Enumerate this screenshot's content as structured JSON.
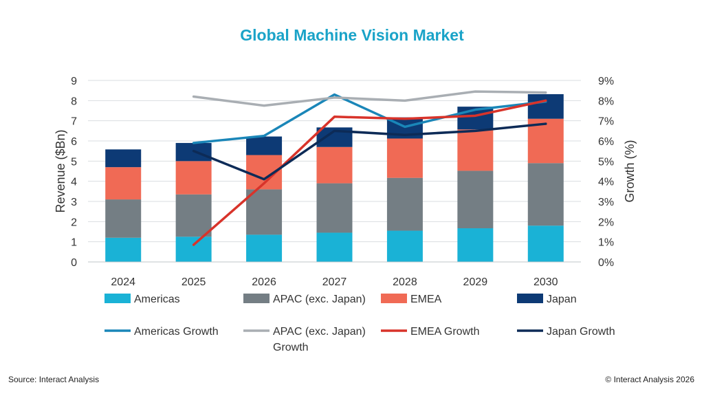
{
  "chart_data": {
    "type": "bar",
    "title": "Global Machine Vision Market",
    "categories": [
      "2024",
      "2025",
      "2026",
      "2027",
      "2028",
      "2029",
      "2030"
    ],
    "ylabel": "Revenue ($Bn)",
    "ylim": [
      0,
      9
    ],
    "y_ticks": [
      "0",
      "1",
      "2",
      "3",
      "4",
      "5",
      "6",
      "7",
      "8",
      "9"
    ],
    "y2label": "Growth (%)",
    "y2lim": [
      0,
      9
    ],
    "y2_ticks": [
      "0%",
      "1%",
      "2%",
      "3%",
      "4%",
      "5%",
      "6%",
      "7%",
      "8%",
      "9%"
    ],
    "stacked": true,
    "grid": true,
    "legend_position": "bottom",
    "series": [
      {
        "name": "Americas",
        "kind": "bar",
        "color": "#1ab2d6",
        "values": [
          1.2,
          1.25,
          1.35,
          1.45,
          1.55,
          1.67,
          1.8
        ]
      },
      {
        "name": "APAC (exc. Japan)",
        "kind": "bar",
        "color": "#747e84",
        "values": [
          1.9,
          2.1,
          2.25,
          2.45,
          2.62,
          2.85,
          3.1
        ]
      },
      {
        "name": "EMEA",
        "kind": "bar",
        "color": "#f06a55",
        "values": [
          1.6,
          1.65,
          1.7,
          1.8,
          1.95,
          2.05,
          2.2
        ]
      },
      {
        "name": "Japan",
        "kind": "bar",
        "color": "#0d3a75",
        "values": [
          0.88,
          0.9,
          0.92,
          0.97,
          1.05,
          1.13,
          1.22
        ]
      },
      {
        "name": "Americas Growth",
        "kind": "line",
        "color": "#1a86b8",
        "values": [
          null,
          5.9,
          6.25,
          8.3,
          6.7,
          7.55,
          7.95
        ]
      },
      {
        "name": "APAC (exc. Japan) Growth",
        "kind": "line",
        "color": "#a9aeb3",
        "values": [
          null,
          8.2,
          7.75,
          8.15,
          8.0,
          8.45,
          8.4
        ]
      },
      {
        "name": "EMEA Growth",
        "kind": "line",
        "color": "#d8332a",
        "values": [
          null,
          0.85,
          3.9,
          7.2,
          7.1,
          7.25,
          8.0
        ]
      },
      {
        "name": "Japan Growth",
        "kind": "line",
        "color": "#0d2b57",
        "values": [
          null,
          5.5,
          4.1,
          6.5,
          6.3,
          6.5,
          6.85
        ]
      }
    ]
  },
  "footer": {
    "source": "Source: Interact Analysis",
    "copyright": "© Interact Analysis 2026"
  }
}
